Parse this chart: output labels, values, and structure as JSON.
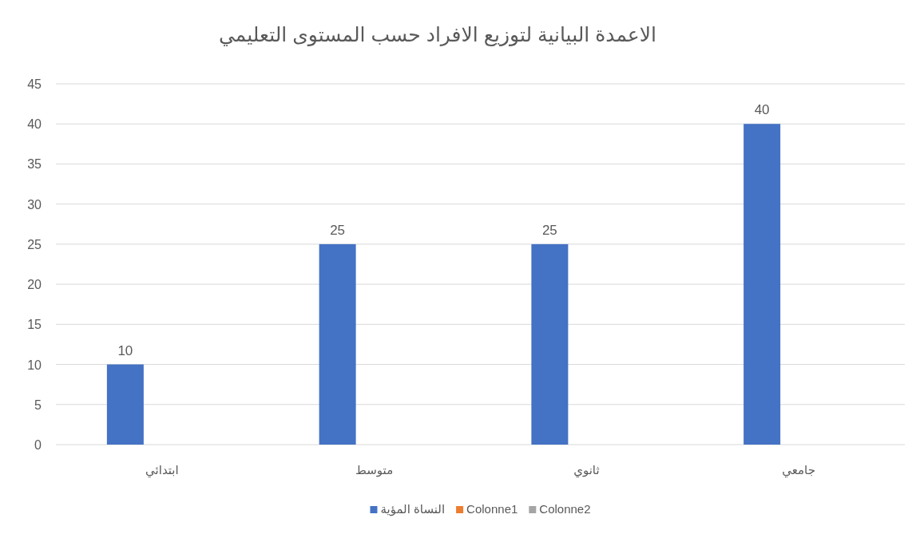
{
  "chart_data": {
    "type": "bar",
    "title": "الاعمدة البيانية لتوزيع الافراد حسب  المستوى التعليمي",
    "categories": [
      "ابتدائي",
      "متوسط",
      "ثانوي",
      "جامعي"
    ],
    "series": [
      {
        "name": "النساة المؤية",
        "color": "#4472c4",
        "values": [
          10,
          25,
          25,
          40
        ]
      },
      {
        "name": "Colonne1",
        "color": "#ed7d31",
        "values": [
          null,
          null,
          null,
          null
        ]
      },
      {
        "name": "Colonne2",
        "color": "#a5a5a5",
        "values": [
          null,
          null,
          null,
          null
        ]
      }
    ],
    "ylim": [
      0,
      45
    ],
    "yticks": [
      0,
      5,
      10,
      15,
      20,
      25,
      30,
      35,
      40,
      45
    ],
    "grid": "y",
    "legend": "bottom",
    "data_labels": true
  }
}
